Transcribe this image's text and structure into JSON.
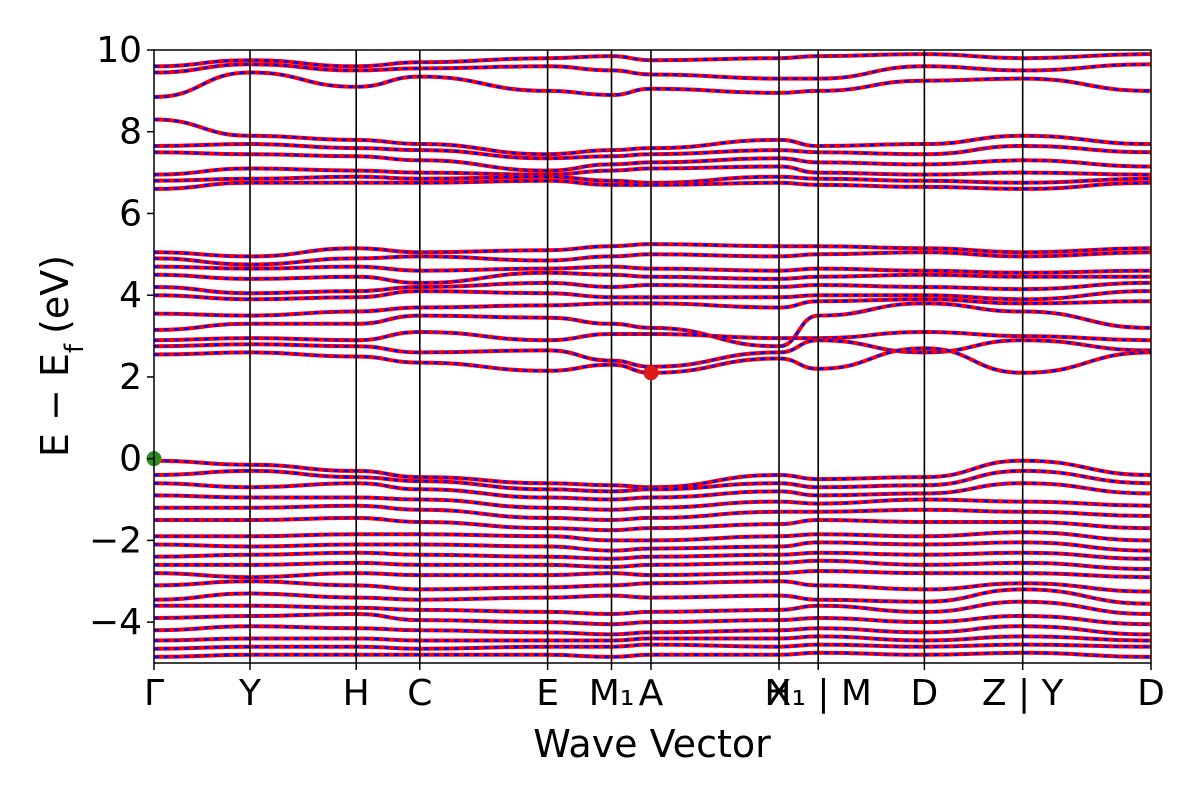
{
  "chart_data": {
    "type": "line",
    "title": "",
    "xlabel": "Wave Vector",
    "ylabel": "E − E",
    "ylabel_subscript": "f",
    "ylabel_unit": "(eV)",
    "ylim": [
      -5,
      10
    ],
    "yticks": [
      -4,
      -2,
      0,
      2,
      4,
      6,
      8,
      10
    ],
    "ytick_labels": [
      "−4",
      "−2",
      "0",
      "2",
      "4",
      "6",
      "8",
      "10"
    ],
    "xlim": [
      0,
      1
    ],
    "kpath": [
      {
        "label": "Γ",
        "pos": 0.0
      },
      {
        "label": "Y",
        "pos": 0.0963
      },
      {
        "label": "H",
        "pos": 0.2028
      },
      {
        "label": "C",
        "pos": 0.2666
      },
      {
        "label": "E",
        "pos": 0.3948
      },
      {
        "label": "M₁",
        "pos": 0.4589
      },
      {
        "label": "A",
        "pos": 0.4985
      },
      {
        "label": "X",
        "pos": 0.6269
      },
      {
        "label": "H₁ | M",
        "pos": 0.6662
      },
      {
        "label": "D",
        "pos": 0.7727
      },
      {
        "label": "Z | Y",
        "pos": 0.8713
      },
      {
        "label": "D",
        "pos": 1.0
      }
    ],
    "series": [
      {
        "style": "solid",
        "color": "#ff0000"
      },
      {
        "style": "dashed",
        "color": "#0000ff"
      }
    ],
    "markers": [
      {
        "label": "VBM",
        "x": 0.0,
        "y": 0.0,
        "color": "#2e8b22"
      },
      {
        "label": "CBM",
        "x": 0.4985,
        "y": 2.1,
        "color": "#dd1a1a"
      }
    ],
    "bands": [
      {
        "knots": [
          9.6,
          9.75,
          9.6,
          9.7,
          9.8,
          9.85,
          9.75,
          9.8,
          9.85,
          9.9,
          9.8,
          9.9
        ]
      },
      {
        "knots": [
          9.45,
          9.65,
          9.5,
          9.55,
          9.6,
          9.5,
          9.4,
          9.3,
          9.3,
          9.6,
          9.5,
          9.65
        ]
      },
      {
        "knots": [
          8.85,
          9.45,
          9.1,
          9.35,
          9.0,
          8.9,
          9.05,
          8.95,
          9.0,
          9.25,
          9.3,
          9.0
        ]
      },
      {
        "knots": [
          8.3,
          7.9,
          7.8,
          7.7,
          7.45,
          7.55,
          7.6,
          7.8,
          7.65,
          7.7,
          7.9,
          7.7
        ]
      },
      {
        "knots": [
          7.65,
          7.7,
          7.6,
          7.55,
          7.35,
          7.4,
          7.45,
          7.55,
          7.5,
          7.45,
          7.65,
          7.5
        ]
      },
      {
        "knots": [
          7.5,
          7.45,
          7.4,
          7.3,
          7.05,
          7.2,
          7.25,
          7.35,
          7.25,
          7.2,
          7.3,
          7.15
        ]
      },
      {
        "knots": [
          6.95,
          7.1,
          7.05,
          7.0,
          6.95,
          7.05,
          7.1,
          7.15,
          7.0,
          6.95,
          7.0,
          6.95
        ]
      },
      {
        "knots": [
          6.8,
          6.85,
          6.9,
          6.85,
          6.9,
          6.8,
          6.75,
          6.9,
          6.85,
          6.8,
          6.75,
          6.85
        ]
      },
      {
        "knots": [
          6.6,
          6.75,
          6.75,
          6.75,
          6.8,
          6.7,
          6.7,
          6.75,
          6.7,
          6.65,
          6.6,
          6.75
        ]
      },
      {
        "knots": [
          5.05,
          4.95,
          5.15,
          5.05,
          5.1,
          5.2,
          5.25,
          5.2,
          5.2,
          5.15,
          5.05,
          5.15
        ]
      },
      {
        "knots": [
          4.9,
          4.75,
          4.9,
          4.95,
          4.85,
          4.95,
          5.0,
          4.95,
          5.0,
          5.05,
          4.95,
          5.05
        ]
      },
      {
        "knots": [
          4.7,
          4.65,
          4.7,
          4.6,
          4.65,
          4.7,
          4.65,
          4.6,
          4.65,
          4.6,
          4.55,
          4.6
        ]
      },
      {
        "knots": [
          4.5,
          4.4,
          4.45,
          4.3,
          4.55,
          4.5,
          4.45,
          4.4,
          4.45,
          4.5,
          4.45,
          4.45
        ]
      },
      {
        "knots": [
          4.2,
          4.05,
          4.1,
          4.2,
          4.3,
          4.2,
          4.25,
          4.2,
          4.25,
          4.2,
          4.15,
          4.3
        ]
      },
      {
        "knots": [
          4.0,
          3.9,
          3.95,
          4.1,
          4.05,
          3.95,
          3.95,
          3.95,
          4.0,
          4.0,
          3.9,
          4.1
        ]
      },
      {
        "knots": [
          3.55,
          3.5,
          3.6,
          3.7,
          3.75,
          3.8,
          3.8,
          3.7,
          3.85,
          3.9,
          3.8,
          3.85
        ]
      },
      {
        "knots": [
          3.15,
          3.3,
          3.3,
          3.5,
          3.45,
          3.3,
          3.2,
          2.75,
          3.5,
          3.8,
          3.6,
          3.2
        ]
      },
      {
        "knots": [
          2.9,
          2.95,
          2.9,
          3.1,
          2.9,
          3.05,
          3.05,
          2.95,
          2.95,
          3.1,
          3.0,
          2.9
        ]
      },
      {
        "knots": [
          2.75,
          2.8,
          2.75,
          2.6,
          2.65,
          2.4,
          2.25,
          2.6,
          2.9,
          2.6,
          2.9,
          2.65
        ]
      },
      {
        "knots": [
          2.55,
          2.6,
          2.5,
          2.35,
          2.15,
          2.3,
          2.1,
          2.45,
          2.2,
          2.7,
          2.1,
          2.6
        ]
      },
      {
        "knots": [
          -0.05,
          -0.15,
          -0.3,
          -0.45,
          -0.6,
          -0.65,
          -0.7,
          -0.4,
          -0.5,
          -0.45,
          -0.05,
          -0.4
        ]
      },
      {
        "knots": [
          -0.4,
          -0.3,
          -0.45,
          -0.55,
          -0.75,
          -0.8,
          -0.75,
          -0.6,
          -0.7,
          -0.65,
          -0.3,
          -0.6
        ]
      },
      {
        "knots": [
          -0.6,
          -0.7,
          -0.6,
          -0.75,
          -0.95,
          -1.0,
          -0.95,
          -0.8,
          -0.9,
          -0.85,
          -0.6,
          -0.85
        ]
      },
      {
        "knots": [
          -0.9,
          -0.95,
          -0.95,
          -1.0,
          -1.2,
          -1.25,
          -1.2,
          -1.05,
          -1.1,
          -1.0,
          -1.05,
          -1.15
        ]
      },
      {
        "knots": [
          -1.2,
          -1.2,
          -1.15,
          -1.25,
          -1.45,
          -1.5,
          -1.45,
          -1.3,
          -1.3,
          -1.25,
          -1.3,
          -1.4
        ]
      },
      {
        "knots": [
          -1.5,
          -1.5,
          -1.45,
          -1.55,
          -1.7,
          -1.75,
          -1.7,
          -1.6,
          -1.5,
          -1.55,
          -1.55,
          -1.7
        ]
      },
      {
        "knots": [
          -1.9,
          -1.9,
          -1.85,
          -1.85,
          -1.9,
          -2.0,
          -2.0,
          -1.9,
          -1.85,
          -1.9,
          -1.8,
          -2.0
        ]
      },
      {
        "knots": [
          -2.1,
          -2.15,
          -2.1,
          -2.1,
          -2.15,
          -2.25,
          -2.2,
          -2.15,
          -2.05,
          -2.1,
          -2.05,
          -2.25
        ]
      },
      {
        "knots": [
          -2.4,
          -2.35,
          -2.3,
          -2.35,
          -2.4,
          -2.45,
          -2.4,
          -2.35,
          -2.3,
          -2.35,
          -2.3,
          -2.45
        ]
      },
      {
        "knots": [
          -2.6,
          -2.6,
          -2.55,
          -2.6,
          -2.6,
          -2.65,
          -2.6,
          -2.55,
          -2.5,
          -2.6,
          -2.55,
          -2.7
        ]
      },
      {
        "knots": [
          -2.8,
          -2.9,
          -2.8,
          -2.85,
          -2.85,
          -2.8,
          -2.85,
          -2.8,
          -2.75,
          -2.8,
          -2.8,
          -2.9
        ]
      },
      {
        "knots": [
          -3.1,
          -3.0,
          -3.1,
          -3.2,
          -3.15,
          -3.1,
          -3.05,
          -3.0,
          -3.1,
          -3.2,
          -3.05,
          -3.25
        ]
      },
      {
        "knots": [
          -3.45,
          -3.3,
          -3.4,
          -3.45,
          -3.4,
          -3.35,
          -3.4,
          -3.35,
          -3.45,
          -3.5,
          -3.2,
          -3.55
        ]
      },
      {
        "knots": [
          -3.6,
          -3.6,
          -3.65,
          -3.7,
          -3.75,
          -3.8,
          -3.75,
          -3.7,
          -3.6,
          -3.75,
          -3.5,
          -3.8
        ]
      },
      {
        "knots": [
          -3.9,
          -3.85,
          -3.8,
          -3.95,
          -4.0,
          -4.05,
          -4.0,
          -3.95,
          -3.9,
          -4.0,
          -3.85,
          -4.05
        ]
      },
      {
        "knots": [
          -4.2,
          -4.1,
          -4.15,
          -4.2,
          -4.25,
          -4.3,
          -4.25,
          -4.2,
          -4.15,
          -4.25,
          -4.1,
          -4.3
        ]
      },
      {
        "knots": [
          -4.45,
          -4.4,
          -4.4,
          -4.45,
          -4.45,
          -4.45,
          -4.4,
          -4.4,
          -4.35,
          -4.45,
          -4.35,
          -4.45
        ]
      },
      {
        "knots": [
          -4.65,
          -4.6,
          -4.6,
          -4.65,
          -4.6,
          -4.6,
          -4.55,
          -4.6,
          -4.55,
          -4.6,
          -4.55,
          -4.6
        ]
      },
      {
        "knots": [
          -4.85,
          -4.8,
          -4.8,
          -4.8,
          -4.8,
          -4.85,
          -4.8,
          -4.8,
          -4.75,
          -4.8,
          -4.75,
          -4.85
        ]
      }
    ]
  }
}
